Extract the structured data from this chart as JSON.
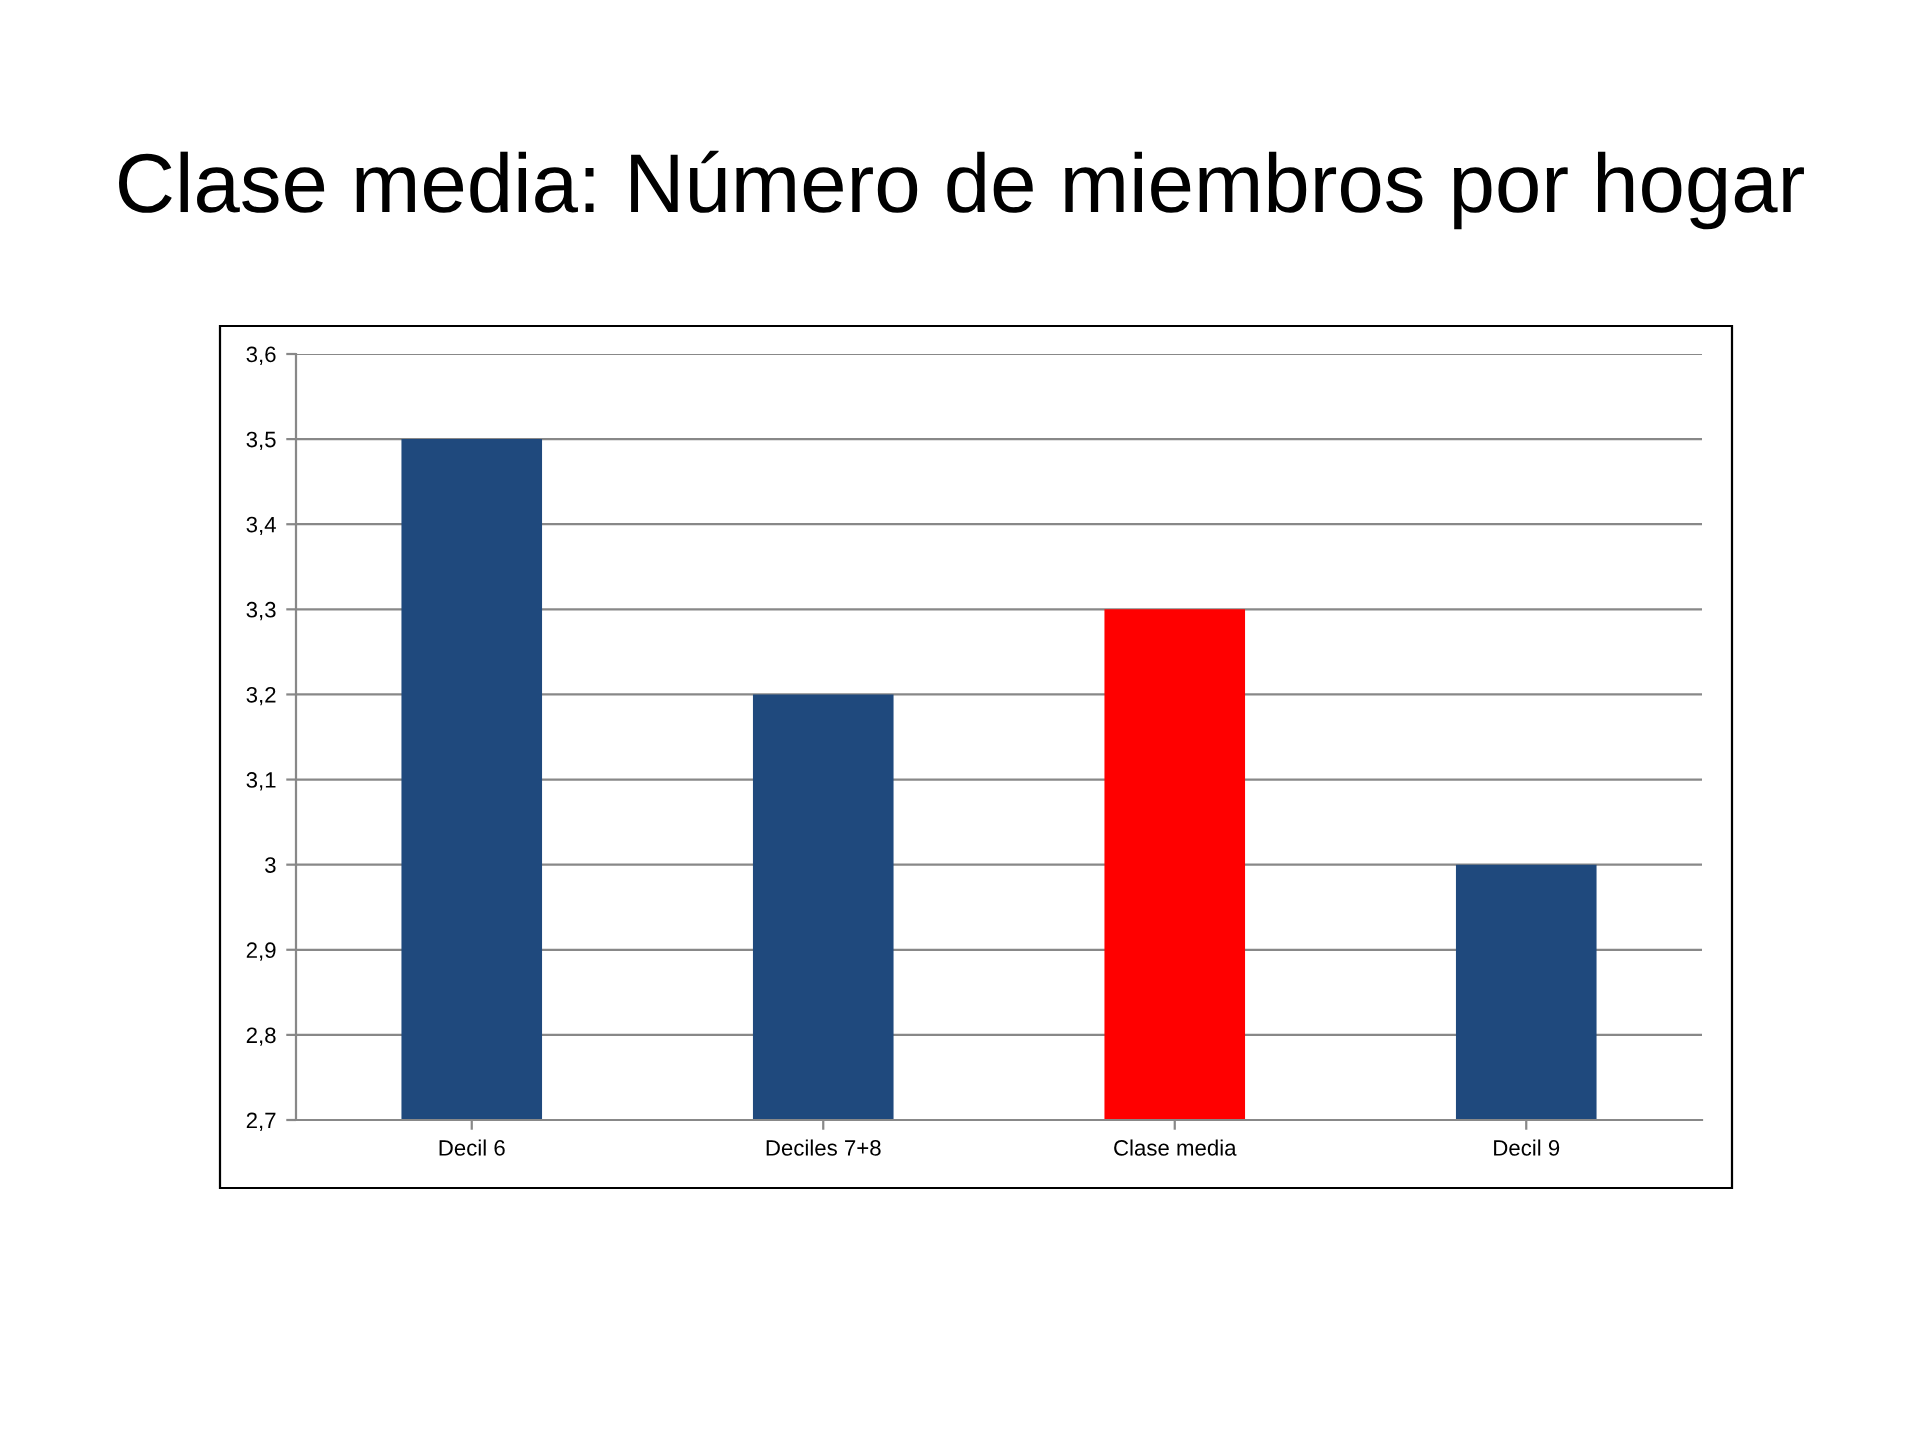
{
  "chart_data": {
    "type": "bar",
    "title": "Clase media: Número de miembros por hogar",
    "categories": [
      "Decil 6",
      "Deciles 7+8",
      "Clase media",
      "Decil 9"
    ],
    "values": [
      3.5,
      3.2,
      3.3,
      3.0
    ],
    "colors": [
      "#1f497d",
      "#1f497d",
      "#ff0000",
      "#1f497d"
    ],
    "ylim": [
      2.7,
      3.6
    ],
    "yticks": [
      {
        "value": 2.7,
        "label": "2,7"
      },
      {
        "value": 2.8,
        "label": "2,8"
      },
      {
        "value": 2.9,
        "label": "2,9"
      },
      3,
      {
        "value": 3.1,
        "label": "3,1"
      },
      {
        "value": 3.2,
        "label": "3,2"
      },
      {
        "value": 3.3,
        "label": "3,3"
      },
      {
        "value": 3.4,
        "label": "3,4"
      },
      {
        "value": 3.5,
        "label": "3,5"
      },
      {
        "value": 3.6,
        "label": "3,6"
      }
    ],
    "grid": "y",
    "legend": false
  }
}
